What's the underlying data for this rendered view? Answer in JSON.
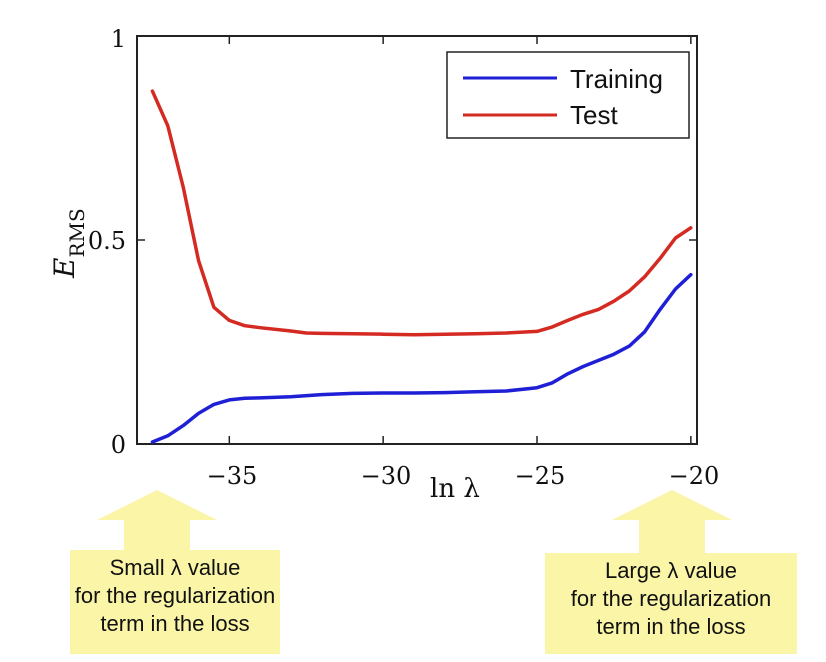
{
  "chart_data": {
    "type": "line",
    "xlabel": "ln λ",
    "ylabel": "E_RMS",
    "xlim": [
      -38,
      -19.8
    ],
    "ylim": [
      0,
      1
    ],
    "xticks": [
      "−35",
      "−30",
      "−25",
      "−20"
    ],
    "yticks": [
      "0",
      "0.5",
      "1"
    ],
    "legend_position": "top-right",
    "series": [
      {
        "name": "Training",
        "color": "#1f1fd6",
        "points": [
          [
            -37.5,
            0.005
          ],
          [
            -37.0,
            0.02
          ],
          [
            -36.5,
            0.045
          ],
          [
            -36.0,
            0.075
          ],
          [
            -35.5,
            0.097
          ],
          [
            -35.0,
            0.108
          ],
          [
            -34.5,
            0.112
          ],
          [
            -34.0,
            0.113
          ],
          [
            -33.0,
            0.116
          ],
          [
            -32.0,
            0.121
          ],
          [
            -31.0,
            0.124
          ],
          [
            -30.0,
            0.125
          ],
          [
            -29.0,
            0.125
          ],
          [
            -28.0,
            0.126
          ],
          [
            -27.0,
            0.128
          ],
          [
            -26.0,
            0.13
          ],
          [
            -25.0,
            0.138
          ],
          [
            -24.5,
            0.15
          ],
          [
            -24.0,
            0.172
          ],
          [
            -23.5,
            0.19
          ],
          [
            -23.0,
            0.205
          ],
          [
            -22.5,
            0.22
          ],
          [
            -22.0,
            0.24
          ],
          [
            -21.5,
            0.275
          ],
          [
            -21.0,
            0.33
          ],
          [
            -20.5,
            0.38
          ],
          [
            -20.0,
            0.415
          ]
        ]
      },
      {
        "name": "Test",
        "color": "#d42a22",
        "points": [
          [
            -37.5,
            0.865
          ],
          [
            -37.0,
            0.78
          ],
          [
            -36.5,
            0.63
          ],
          [
            -36.0,
            0.45
          ],
          [
            -35.5,
            0.335
          ],
          [
            -35.0,
            0.303
          ],
          [
            -34.5,
            0.29
          ],
          [
            -34.0,
            0.285
          ],
          [
            -33.0,
            0.277
          ],
          [
            -32.5,
            0.272
          ],
          [
            -32.0,
            0.271
          ],
          [
            -31.0,
            0.27
          ],
          [
            -30.0,
            0.269
          ],
          [
            -29.0,
            0.268
          ],
          [
            -28.0,
            0.269
          ],
          [
            -27.0,
            0.27
          ],
          [
            -26.0,
            0.272
          ],
          [
            -25.0,
            0.276
          ],
          [
            -24.5,
            0.287
          ],
          [
            -24.0,
            0.303
          ],
          [
            -23.5,
            0.318
          ],
          [
            -23.0,
            0.33
          ],
          [
            -22.5,
            0.35
          ],
          [
            -22.0,
            0.375
          ],
          [
            -21.5,
            0.41
          ],
          [
            -21.0,
            0.455
          ],
          [
            -20.5,
            0.505
          ],
          [
            -20.0,
            0.53
          ]
        ]
      }
    ]
  },
  "annotations": {
    "left": {
      "text": "Small  λ value\nfor the regularization\nterm in the loss",
      "color": "#fbf6a7"
    },
    "right": {
      "text": "Large  λ value\nfor the regularization\nterm in the loss",
      "color": "#fbf6a7"
    }
  }
}
